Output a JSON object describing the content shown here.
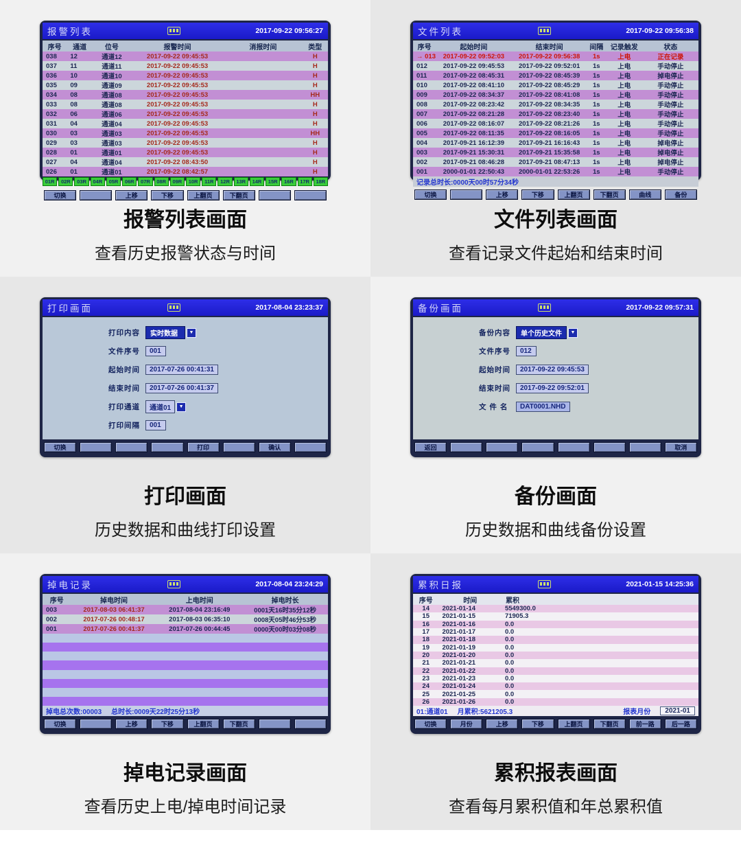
{
  "colors": {
    "titlebar_blue": "#1d1dd2",
    "frame_navy": "#1e2546",
    "row_purple": "#c28fd4",
    "row_light": "#ccd6db",
    "row_purple_bright": "#a673ee",
    "row_light_blue": "#bac7e5",
    "row_pink": "#e9c8e5",
    "alarm_red": "#a52a1c",
    "active_red": "#cc1507",
    "tag_green": "#3ace3a",
    "status_blue": "#2436cf",
    "button_slate": "#8494c6"
  },
  "panels": {
    "alarm": {
      "title": "报警列表",
      "time": "2017-09-22 09:56:27",
      "caption": "报警列表画面",
      "subtitle": "查看历史报警状态与时间",
      "columns": [
        "序号",
        "通道",
        "位号",
        "报警时间",
        "消报时间",
        "类型"
      ],
      "rows": [
        {
          "seq": "038",
          "ch": "12",
          "tag": "通道12",
          "alarm": "2017-09-22 09:45:53",
          "clear": "",
          "type": "H"
        },
        {
          "seq": "037",
          "ch": "11",
          "tag": "通道11",
          "alarm": "2017-09-22 09:45:53",
          "clear": "",
          "type": "H"
        },
        {
          "seq": "036",
          "ch": "10",
          "tag": "通道10",
          "alarm": "2017-09-22 09:45:53",
          "clear": "",
          "type": "H"
        },
        {
          "seq": "035",
          "ch": "09",
          "tag": "通道09",
          "alarm": "2017-09-22 09:45:53",
          "clear": "",
          "type": "H"
        },
        {
          "seq": "034",
          "ch": "08",
          "tag": "通道08",
          "alarm": "2017-09-22 09:45:53",
          "clear": "",
          "type": "HH"
        },
        {
          "seq": "033",
          "ch": "08",
          "tag": "通道08",
          "alarm": "2017-09-22 09:45:53",
          "clear": "",
          "type": "H"
        },
        {
          "seq": "032",
          "ch": "06",
          "tag": "通道06",
          "alarm": "2017-09-22 09:45:53",
          "clear": "",
          "type": "H"
        },
        {
          "seq": "031",
          "ch": "04",
          "tag": "通道04",
          "alarm": "2017-09-22 09:45:53",
          "clear": "",
          "type": "H"
        },
        {
          "seq": "030",
          "ch": "03",
          "tag": "通道03",
          "alarm": "2017-09-22 09:45:53",
          "clear": "",
          "type": "HH"
        },
        {
          "seq": "029",
          "ch": "03",
          "tag": "通道03",
          "alarm": "2017-09-22 09:45:53",
          "clear": "",
          "type": "H"
        },
        {
          "seq": "028",
          "ch": "01",
          "tag": "通道01",
          "alarm": "2017-09-22 09:45:53",
          "clear": "",
          "type": "H"
        },
        {
          "seq": "027",
          "ch": "04",
          "tag": "通道04",
          "alarm": "2017-09-22 08:43:50",
          "clear": "",
          "type": "H"
        },
        {
          "seq": "026",
          "ch": "01",
          "tag": "通道01",
          "alarm": "2017-09-22 08:42:57",
          "clear": "",
          "type": "H"
        }
      ],
      "tags": [
        "01R",
        "02R",
        "03R",
        "04R",
        "05R",
        "06R",
        "07R",
        "08R",
        "09R",
        "10R",
        "11R",
        "12R",
        "13R",
        "14R",
        "15R",
        "16R",
        "17R",
        "18R"
      ],
      "buttons": [
        "切换",
        "",
        "上移",
        "下移",
        "上翻页",
        "下翻页",
        "",
        ""
      ]
    },
    "files": {
      "title": "文件列表",
      "time": "2017-09-22 09:56:38",
      "caption": "文件列表画面",
      "subtitle": "查看记录文件起始和结束时间",
      "columns": [
        "序号",
        "起始时间",
        "结束时间",
        "间隔",
        "记录触发",
        "状态"
      ],
      "active_marker": "→",
      "rows": [
        {
          "seq": "013",
          "start": "2017-09-22 09:52:03",
          "end": "2017-09-22 09:56:38",
          "interval": "1s",
          "trigger": "上电",
          "state": "正在记录",
          "active": true
        },
        {
          "seq": "012",
          "start": "2017-09-22 09:45:53",
          "end": "2017-09-22 09:52:01",
          "interval": "1s",
          "trigger": "上电",
          "state": "手动停止"
        },
        {
          "seq": "011",
          "start": "2017-09-22 08:45:31",
          "end": "2017-09-22 08:45:39",
          "interval": "1s",
          "trigger": "上电",
          "state": "掉电停止"
        },
        {
          "seq": "010",
          "start": "2017-09-22 08:41:10",
          "end": "2017-09-22 08:45:29",
          "interval": "1s",
          "trigger": "上电",
          "state": "手动停止"
        },
        {
          "seq": "009",
          "start": "2017-09-22 08:34:37",
          "end": "2017-09-22 08:41:08",
          "interval": "1s",
          "trigger": "上电",
          "state": "手动停止"
        },
        {
          "seq": "008",
          "start": "2017-09-22 08:23:42",
          "end": "2017-09-22 08:34:35",
          "interval": "1s",
          "trigger": "上电",
          "state": "手动停止"
        },
        {
          "seq": "007",
          "start": "2017-09-22 08:21:28",
          "end": "2017-09-22 08:23:40",
          "interval": "1s",
          "trigger": "上电",
          "state": "手动停止"
        },
        {
          "seq": "006",
          "start": "2017-09-22 08:16:07",
          "end": "2017-09-22 08:21:26",
          "interval": "1s",
          "trigger": "上电",
          "state": "手动停止"
        },
        {
          "seq": "005",
          "start": "2017-09-22 08:11:35",
          "end": "2017-09-22 08:16:05",
          "interval": "1s",
          "trigger": "上电",
          "state": "手动停止"
        },
        {
          "seq": "004",
          "start": "2017-09-21 16:12:39",
          "end": "2017-09-21 16:16:43",
          "interval": "1s",
          "trigger": "上电",
          "state": "掉电停止"
        },
        {
          "seq": "003",
          "start": "2017-09-21 15:30:31",
          "end": "2017-09-21 15:35:58",
          "interval": "1s",
          "trigger": "上电",
          "state": "掉电停止"
        },
        {
          "seq": "002",
          "start": "2017-09-21 08:46:28",
          "end": "2017-09-21 08:47:13",
          "interval": "1s",
          "trigger": "上电",
          "state": "掉电停止"
        },
        {
          "seq": "001",
          "start": "2000-01-01 22:50:43",
          "end": "2000-01-01 22:53:26",
          "interval": "1s",
          "trigger": "上电",
          "state": "手动停止"
        }
      ],
      "status": "记录总时长:0000天00时57分34秒",
      "buttons": [
        "切换",
        "",
        "上移",
        "下移",
        "上翻页",
        "下翻页",
        "曲线",
        "备份"
      ]
    },
    "print": {
      "title": "打印画面",
      "time": "2017-08-04 23:23:37",
      "caption": "打印画面",
      "subtitle": "历史数据和曲线打印设置",
      "fields": [
        {
          "label": "打印内容",
          "value": "实时数据",
          "widget": "dropdown-selected"
        },
        {
          "label": "文件序号",
          "value": "001",
          "widget": "input"
        },
        {
          "label": "起始时间",
          "value": "2017-07-26 00:41:31",
          "widget": "input"
        },
        {
          "label": "结束时间",
          "value": "2017-07-26 00:41:37",
          "widget": "input"
        },
        {
          "label": "打印通道",
          "value": "通道01",
          "widget": "dropdown"
        },
        {
          "label": "打印间隔",
          "value": "001",
          "widget": "input"
        }
      ],
      "buttons": [
        "切换",
        "",
        "",
        "",
        "打印",
        "",
        "确认",
        ""
      ]
    },
    "backup": {
      "title": "备份画面",
      "time": "2017-09-22 09:57:31",
      "caption": "备份画面",
      "subtitle": "历史数据和曲线备份设置",
      "fields": [
        {
          "label": "备份内容",
          "value": "单个历史文件",
          "widget": "dropdown-selected"
        },
        {
          "label": "文件序号",
          "value": "012",
          "widget": "input"
        },
        {
          "label": "起始时间",
          "value": "2017-09-22 09:45:53",
          "widget": "input"
        },
        {
          "label": "结束时间",
          "value": "2017-09-22 09:52:01",
          "widget": "input"
        },
        {
          "label": "文 件 名",
          "value": "DAT0001.NHD",
          "widget": "input-highlight"
        }
      ],
      "buttons": [
        "返回",
        "",
        "",
        "",
        "",
        "",
        "",
        "取消"
      ]
    },
    "power": {
      "title": "掉电记录",
      "time": "2017-08-04 23:24:29",
      "caption": "掉电记录画面",
      "subtitle": "查看历史上电/掉电时间记录",
      "columns": [
        "序号",
        "掉电时间",
        "上电时间",
        "掉电时长"
      ],
      "rows": [
        {
          "seq": "003",
          "off": "2017-08-03 06:41:37",
          "on": "2017-08-04 23:16:49",
          "dur": "0001天16时35分12秒"
        },
        {
          "seq": "002",
          "off": "2017-07-26 00:48:17",
          "on": "2017-08-03 06:35:10",
          "dur": "0008天05时46分53秒"
        },
        {
          "seq": "001",
          "off": "2017-07-26 00:41:37",
          "on": "2017-07-26 00:44:45",
          "dur": "0000天00时03分08秒"
        }
      ],
      "empty_rows": 8,
      "status": {
        "count": "掉电总次数:00003",
        "total": "总时长:0009天22时25分13秒"
      },
      "buttons": [
        "切换",
        "",
        "上移",
        "下移",
        "上翻页",
        "下翻页",
        "",
        ""
      ]
    },
    "report": {
      "title": "累积日报",
      "time": "2021-01-15 14:25:36",
      "caption": "累积报表画面",
      "subtitle": "查看每月累积值和年总累积值",
      "columns": [
        "序号",
        "时间",
        "累积"
      ],
      "rows": [
        {
          "seq": "14",
          "date": "2021-01-14",
          "value": "5549300.0"
        },
        {
          "seq": "15",
          "date": "2021-01-15",
          "value": "71905.3"
        },
        {
          "seq": "16",
          "date": "2021-01-16",
          "value": "0.0"
        },
        {
          "seq": "17",
          "date": "2021-01-17",
          "value": "0.0"
        },
        {
          "seq": "18",
          "date": "2021-01-18",
          "value": "0.0"
        },
        {
          "seq": "19",
          "date": "2021-01-19",
          "value": "0.0"
        },
        {
          "seq": "20",
          "date": "2021-01-20",
          "value": "0.0"
        },
        {
          "seq": "21",
          "date": "2021-01-21",
          "value": "0.0"
        },
        {
          "seq": "22",
          "date": "2021-01-22",
          "value": "0.0"
        },
        {
          "seq": "23",
          "date": "2021-01-23",
          "value": "0.0"
        },
        {
          "seq": "24",
          "date": "2021-01-24",
          "value": "0.0"
        },
        {
          "seq": "25",
          "date": "2021-01-25",
          "value": "0.0"
        },
        {
          "seq": "26",
          "date": "2021-01-26",
          "value": "0.0"
        }
      ],
      "status": {
        "channel": "01:通道01",
        "month_total": "月累积:5621205.3",
        "month_label": "报表月份",
        "month_value": "2021-01"
      },
      "buttons": [
        "切换",
        "月份",
        "上移",
        "下移",
        "上翻页",
        "下翻页",
        "前一路",
        "后一路"
      ]
    }
  }
}
